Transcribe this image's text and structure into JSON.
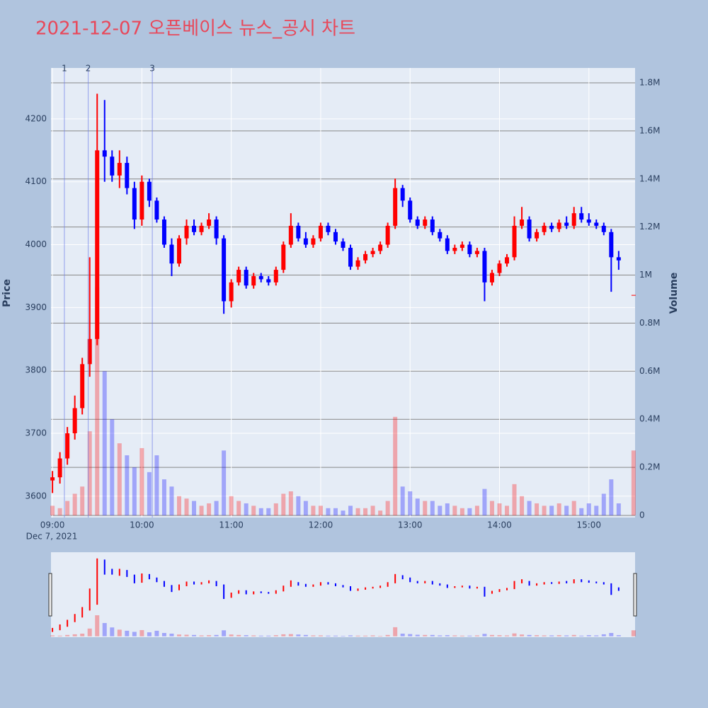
{
  "chart_data": {
    "type": "candlestick",
    "title": "2021-12-07 오픈베이스 뉴스_공시 차트",
    "y_label": "Price",
    "y2_label": "Volume",
    "x_date_label": "Dec 7, 2021",
    "increasing_color": "#ff0000",
    "decreasing_color": "#0000ff",
    "x": [
      "09:00",
      "09:05",
      "09:10",
      "09:15",
      "09:20",
      "09:25",
      "09:30",
      "09:35",
      "09:40",
      "09:45",
      "09:50",
      "09:55",
      "10:00",
      "10:05",
      "10:10",
      "10:15",
      "10:20",
      "10:25",
      "10:30",
      "10:35",
      "10:40",
      "10:45",
      "10:50",
      "10:55",
      "11:00",
      "11:05",
      "11:10",
      "11:15",
      "11:20",
      "11:25",
      "11:30",
      "11:35",
      "11:40",
      "11:45",
      "11:50",
      "11:55",
      "12:00",
      "12:05",
      "12:10",
      "12:15",
      "12:20",
      "12:25",
      "12:30",
      "12:35",
      "12:40",
      "12:45",
      "12:50",
      "12:55",
      "13:00",
      "13:05",
      "13:10",
      "13:15",
      "13:20",
      "13:25",
      "13:30",
      "13:35",
      "13:40",
      "13:45",
      "13:50",
      "13:55",
      "14:00",
      "14:05",
      "14:10",
      "14:15",
      "14:20",
      "14:25",
      "14:30",
      "14:35",
      "14:40",
      "14:45",
      "14:50",
      "14:55",
      "15:00",
      "15:05",
      "15:10",
      "15:15",
      "15:20",
      "15:30"
    ],
    "open": [
      3625,
      3630,
      3660,
      3700,
      3740,
      3810,
      3850,
      4150,
      4140,
      4110,
      4130,
      4090,
      4040,
      4100,
      4070,
      4040,
      4000,
      3970,
      4010,
      4030,
      4020,
      4030,
      4040,
      4010,
      3910,
      3940,
      3960,
      3935,
      3950,
      3945,
      3940,
      3960,
      4000,
      4030,
      4010,
      4000,
      4010,
      4030,
      4020,
      4005,
      3995,
      3965,
      3975,
      3985,
      3990,
      4000,
      4030,
      4090,
      4070,
      4040,
      4030,
      4040,
      4020,
      4010,
      3990,
      3995,
      4000,
      3985,
      3990,
      3940,
      3955,
      3970,
      3980,
      4030,
      4040,
      4010,
      4020,
      4030,
      4025,
      4035,
      4030,
      4050,
      4040,
      4035,
      4030,
      4020,
      3980,
      3920
    ],
    "high": [
      3640,
      3670,
      3710,
      3760,
      3820,
      3980,
      4240,
      4230,
      4150,
      4150,
      4140,
      4100,
      4110,
      4105,
      4075,
      4045,
      4010,
      4015,
      4040,
      4040,
      4035,
      4050,
      4045,
      4015,
      3945,
      3965,
      3965,
      3955,
      3955,
      3950,
      3965,
      4005,
      4050,
      4035,
      4020,
      4015,
      4035,
      4035,
      4025,
      4010,
      4000,
      3980,
      3990,
      3995,
      4005,
      4035,
      4105,
      4095,
      4075,
      4045,
      4045,
      4045,
      4025,
      4015,
      4000,
      4005,
      4005,
      3995,
      3995,
      3960,
      3975,
      3985,
      4045,
      4060,
      4045,
      4025,
      4035,
      4035,
      4040,
      4045,
      4060,
      4060,
      4050,
      4040,
      4035,
      4025,
      3990,
      3920
    ],
    "low": [
      3605,
      3620,
      3650,
      3690,
      3730,
      3790,
      3840,
      4100,
      4100,
      4090,
      4080,
      4025,
      4030,
      4060,
      4035,
      3995,
      3950,
      3965,
      4000,
      4015,
      4015,
      4025,
      4000,
      3890,
      3900,
      3935,
      3930,
      3930,
      3940,
      3935,
      3935,
      3955,
      3995,
      4005,
      3995,
      3995,
      4005,
      4015,
      4000,
      3990,
      3960,
      3960,
      3970,
      3980,
      3985,
      3995,
      4025,
      4060,
      4035,
      4025,
      4025,
      4015,
      4005,
      3985,
      3985,
      3990,
      3980,
      3980,
      3910,
      3935,
      3950,
      3965,
      3975,
      4025,
      4005,
      4005,
      4015,
      4020,
      4020,
      4025,
      4025,
      4035,
      4030,
      4025,
      4015,
      3925,
      3960,
      3920
    ],
    "close": [
      3630,
      3660,
      3700,
      3740,
      3810,
      3850,
      4150,
      4140,
      4110,
      4130,
      4090,
      4040,
      4100,
      4070,
      4040,
      4000,
      3970,
      4010,
      4030,
      4020,
      4030,
      4040,
      4010,
      3910,
      3940,
      3960,
      3935,
      3950,
      3945,
      3940,
      3960,
      4000,
      4030,
      4010,
      4000,
      4010,
      4030,
      4020,
      4005,
      3995,
      3965,
      3975,
      3985,
      3990,
      4000,
      4030,
      4090,
      4070,
      4040,
      4030,
      4040,
      4020,
      4010,
      3990,
      3995,
      4000,
      3985,
      3990,
      3940,
      3955,
      3970,
      3980,
      4030,
      4040,
      4010,
      4020,
      4030,
      4025,
      4035,
      4030,
      4050,
      4040,
      4035,
      4030,
      4020,
      3980,
      3975,
      3920
    ],
    "volume": [
      40000,
      30000,
      60000,
      90000,
      120000,
      350000,
      950000,
      600000,
      400000,
      300000,
      250000,
      200000,
      280000,
      180000,
      250000,
      150000,
      120000,
      80000,
      70000,
      60000,
      40000,
      50000,
      60000,
      270000,
      80000,
      60000,
      50000,
      40000,
      30000,
      30000,
      50000,
      90000,
      100000,
      80000,
      60000,
      40000,
      40000,
      30000,
      30000,
      20000,
      40000,
      30000,
      30000,
      40000,
      20000,
      60000,
      410000,
      120000,
      100000,
      70000,
      60000,
      60000,
      40000,
      50000,
      40000,
      30000,
      30000,
      40000,
      110000,
      60000,
      50000,
      40000,
      130000,
      80000,
      60000,
      50000,
      40000,
      40000,
      50000,
      40000,
      60000,
      30000,
      50000,
      40000,
      90000,
      150000,
      50000,
      270000
    ],
    "xlim": [
      "08:59",
      "15:31"
    ],
    "xticks": [
      "09:00",
      "10:00",
      "11:00",
      "12:00",
      "13:00",
      "14:00",
      "15:00"
    ],
    "ylim": [
      3566,
      4281
    ],
    "yticks": [
      3600,
      3700,
      3800,
      3900,
      4000,
      4100,
      4200
    ],
    "y2lim": [
      -9000,
      1862000
    ],
    "y2ticks": [
      0,
      {
        "value": 200000,
        "label": "0.2M"
      },
      {
        "value": 400000,
        "label": "0.4M"
      },
      {
        "value": 600000,
        "label": "0.6M"
      },
      {
        "value": 800000,
        "label": "0.8M"
      },
      {
        "value": 1000000,
        "label": "1M"
      },
      {
        "value": 1200000,
        "label": "1.2M"
      },
      {
        "value": 1400000,
        "label": "1.4M"
      },
      {
        "value": 1600000,
        "label": "1.6M"
      },
      {
        "value": 1800000,
        "label": "1.8M"
      }
    ],
    "annotations": [
      {
        "x": "09:08",
        "label": "1"
      },
      {
        "x": "09:24",
        "label": "2"
      },
      {
        "x": "10:07",
        "label": "3"
      }
    ],
    "grid": true
  }
}
